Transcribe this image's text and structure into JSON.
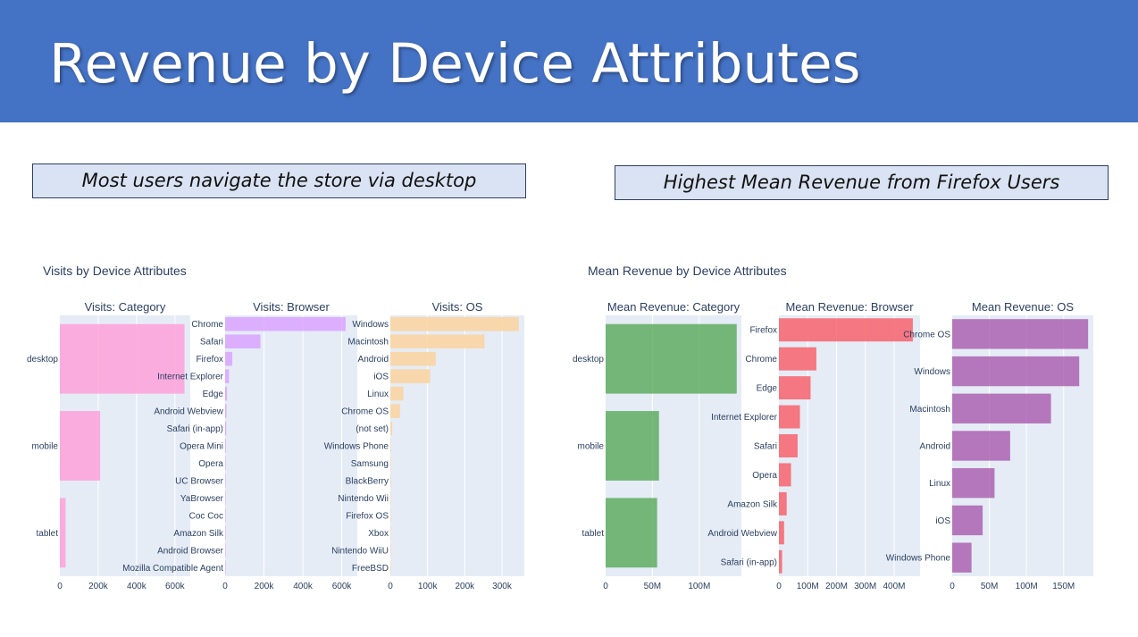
{
  "slide": {
    "title": "Revenue by Device Attributes",
    "callout_left": "Most users navigate the store via desktop",
    "callout_right": "Highest Mean Revenue from Firefox Users"
  },
  "colors": {
    "header": "#4472c4",
    "plot_bg": "#e5ecf6"
  },
  "figures": {
    "visits": {
      "title": "Visits by Device Attributes"
    },
    "revenue": {
      "title": "Mean Revenue by Device Attributes"
    }
  },
  "chart_data": [
    {
      "type": "bar",
      "orientation": "horizontal",
      "title": "Visits: Category",
      "figure": "Visits by Device Attributes",
      "categories": [
        "desktop",
        "mobile",
        "tablet"
      ],
      "values": [
        650000,
        210000,
        30000
      ],
      "xlim": [
        0,
        680000
      ],
      "xticks": [
        0,
        200000,
        400000,
        600000
      ],
      "xtick_labels": [
        "0",
        "200k",
        "400k",
        "600k"
      ],
      "color": "#ffa1d9"
    },
    {
      "type": "bar",
      "orientation": "horizontal",
      "title": "Visits: Browser",
      "figure": "Visits by Device Attributes",
      "categories": [
        "Chrome",
        "Safari",
        "Firefox",
        "Internet Explorer",
        "Edge",
        "Android Webview",
        "Safari (in-app)",
        "Opera Mini",
        "Opera",
        "UC Browser",
        "YaBrowser",
        "Coc Coc",
        "Amazon Silk",
        "Android Browser",
        "Mozilla Compatible Agent"
      ],
      "values": [
        620000,
        182000,
        37000,
        20000,
        10000,
        7000,
        6000,
        4000,
        3000,
        1500,
        1000,
        800,
        600,
        500,
        300
      ],
      "xlim": [
        0,
        680000
      ],
      "xticks": [
        0,
        200000,
        400000,
        600000
      ],
      "xtick_labels": [
        "0",
        "200k",
        "400k",
        "600k"
      ],
      "color": "#dba4ff"
    },
    {
      "type": "bar",
      "orientation": "horizontal",
      "title": "Visits: OS",
      "figure": "Visits by Device Attributes",
      "categories": [
        "Windows",
        "Macintosh",
        "Android",
        "iOS",
        "Linux",
        "Chrome OS",
        "(not set)",
        "Windows Phone",
        "Samsung",
        "BlackBerry",
        "Nintendo Wii",
        "Firefox OS",
        "Xbox",
        "Nintendo WiiU",
        "FreeBSD"
      ],
      "values": [
        345000,
        253000,
        122000,
        107000,
        35000,
        26000,
        5000,
        1500,
        1000,
        700,
        500,
        400,
        300,
        200,
        100
      ],
      "xlim": [
        0,
        360000
      ],
      "xticks": [
        0,
        100000,
        200000,
        300000
      ],
      "xtick_labels": [
        "0",
        "100k",
        "200k",
        "300k"
      ],
      "color": "#fad49e"
    },
    {
      "type": "bar",
      "orientation": "horizontal",
      "title": "Mean Revenue: Category",
      "figure": "Mean Revenue by Device Attributes",
      "categories": [
        "desktop",
        "mobile",
        "tablet"
      ],
      "values": [
        140000000,
        57000000,
        55000000
      ],
      "xlim": [
        0,
        145000000
      ],
      "xticks": [
        0,
        50000000,
        100000000
      ],
      "xtick_labels": [
        "0",
        "50M",
        "100M"
      ],
      "color": "#5fad62"
    },
    {
      "type": "bar",
      "orientation": "horizontal",
      "title": "Mean Revenue: Browser",
      "figure": "Mean Revenue by Device Attributes",
      "categories": [
        "Firefox",
        "Chrome",
        "Edge",
        "Internet Explorer",
        "Safari",
        "Opera",
        "Amazon Silk",
        "Android Webview",
        "Safari (in-app)"
      ],
      "values": [
        465000000,
        130000000,
        110000000,
        73000000,
        65000000,
        42000000,
        27000000,
        18000000,
        11000000
      ],
      "xlim": [
        0,
        490000000
      ],
      "xticks": [
        0,
        100000000,
        200000000,
        300000000,
        400000000
      ],
      "xtick_labels": [
        "0",
        "100M",
        "200M",
        "300M",
        "400M"
      ],
      "color": "#f7636c"
    },
    {
      "type": "bar",
      "orientation": "horizontal",
      "title": "Mean Revenue: OS",
      "figure": "Mean Revenue by Device Attributes",
      "categories": [
        "Chrome OS",
        "Windows",
        "Macintosh",
        "Android",
        "Linux",
        "iOS",
        "Windows Phone"
      ],
      "values": [
        183000000,
        171000000,
        133000000,
        78000000,
        57000000,
        41000000,
        26000000
      ],
      "xlim": [
        0,
        190000000
      ],
      "xticks": [
        0,
        50000000,
        100000000,
        150000000
      ],
      "xtick_labels": [
        "0",
        "50M",
        "100M",
        "150M"
      ],
      "color": "#ab63b0"
    }
  ]
}
